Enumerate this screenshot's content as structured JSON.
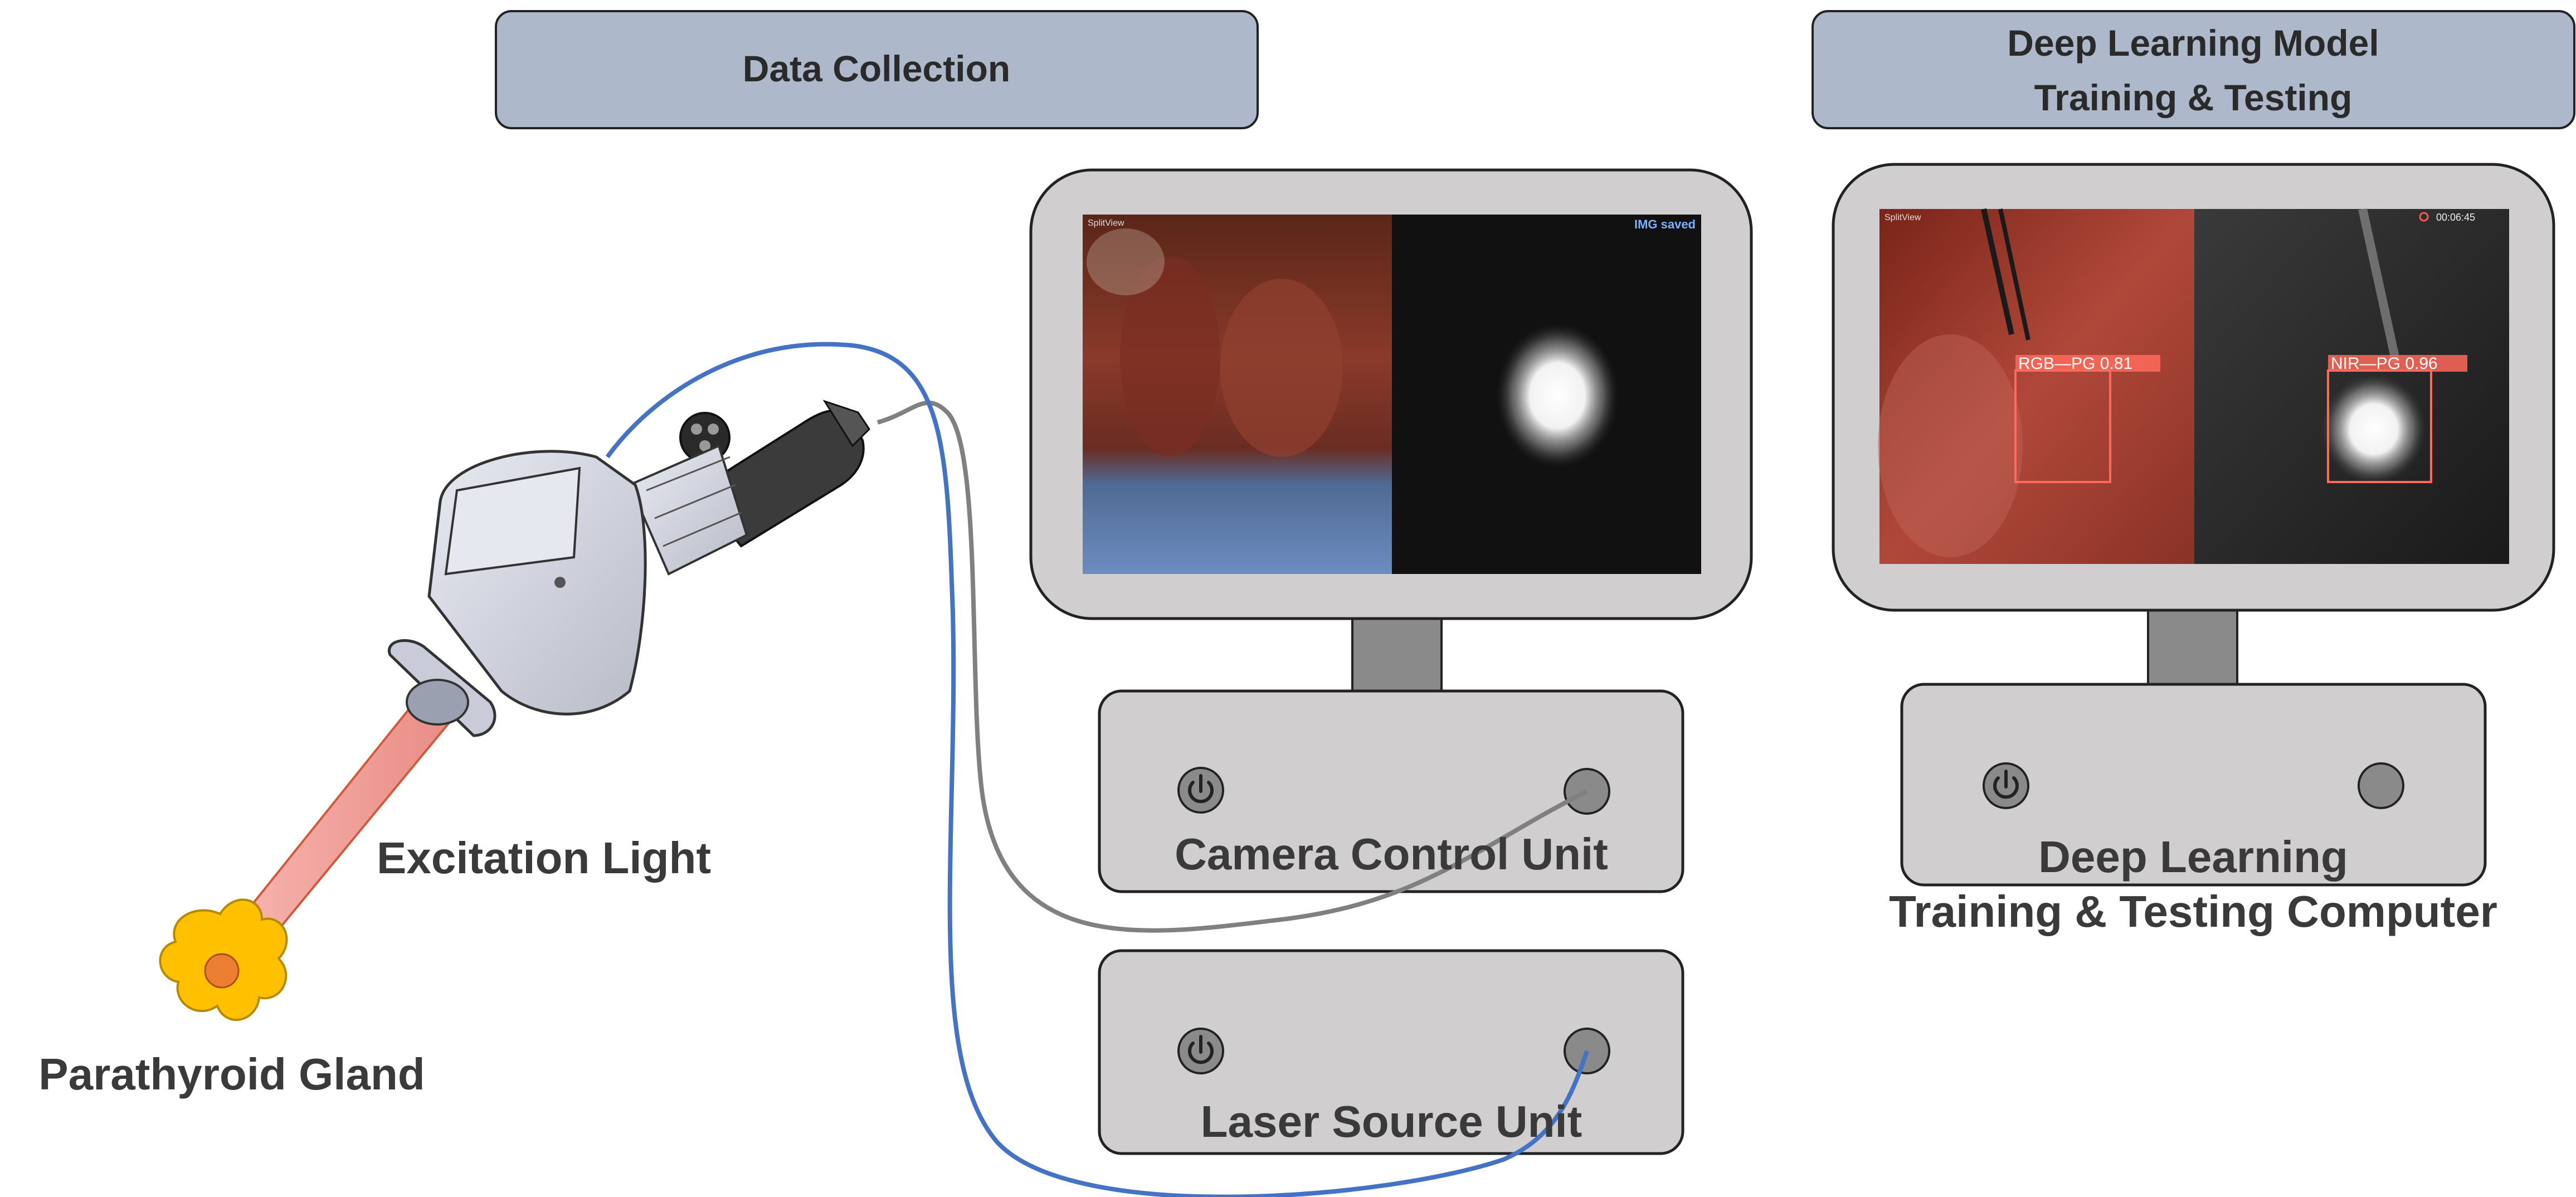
{
  "sections": {
    "data_collection": "Data Collection",
    "deep_learning_line1": "Deep Learning Model",
    "deep_learning_line2": "Training & Testing"
  },
  "labels": {
    "excitation_light": "Excitation Light",
    "parathyroid_gland": "Parathyroid Gland",
    "camera_control_unit": "Camera Control Unit",
    "laser_source_unit": "Laser Source Unit",
    "computer_line1": "Deep Learning",
    "computer_line2": "Training & Testing Computer"
  },
  "monitor_left": {
    "view_label": "SplitView",
    "status": "IMG saved"
  },
  "monitor_right": {
    "view_label": "SplitView",
    "timer": "00:06:45",
    "detection_rgb": "RGB—PG 0.81",
    "detection_nir": "NIR—PG 0.96"
  },
  "colors": {
    "header_fill": "#adb9ca",
    "unit_fill": "#d0cecf",
    "cable_blue": "#4472c4",
    "cable_gray": "#808080",
    "gland_yellow": "#ffc000",
    "gland_core": "#ed7d31",
    "beam": "#f4a3a0",
    "detection_box": "#ff6a5a"
  }
}
